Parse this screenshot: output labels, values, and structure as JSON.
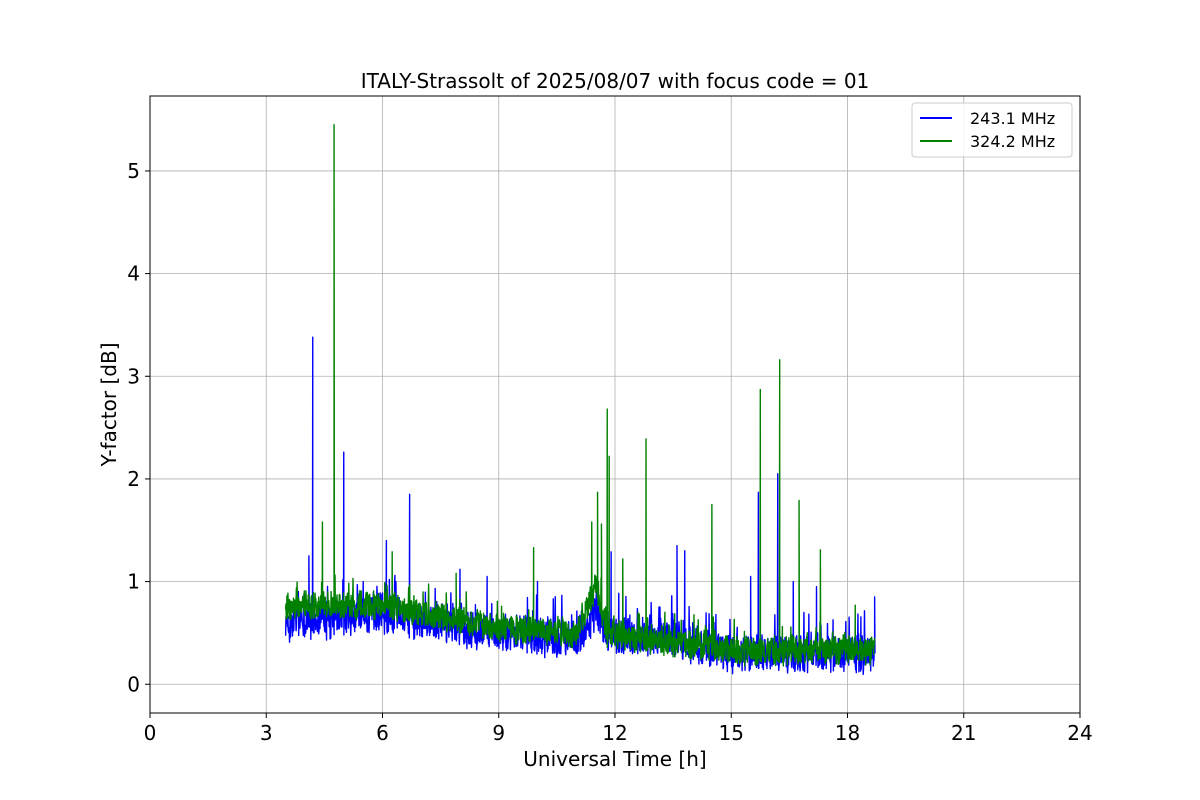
{
  "chart_data": {
    "type": "line",
    "title": "ITALY-Strassolt of 2025/08/07 with focus code = 01",
    "xlabel": "Universal Time [h]",
    "ylabel": "Y-factor [dB]",
    "xlim": [
      0,
      24
    ],
    "ylim": [
      -0.28,
      5.73
    ],
    "xticks": [
      0,
      3,
      6,
      9,
      12,
      15,
      18,
      21,
      24
    ],
    "yticks": [
      0,
      1,
      2,
      3,
      4,
      5
    ],
    "xtick_labels": [
      "0",
      "3",
      "6",
      "9",
      "12",
      "15",
      "18",
      "21",
      "24"
    ],
    "ytick_labels": [
      "0",
      "1",
      "2",
      "3",
      "4",
      "5"
    ],
    "grid": true,
    "legend_position": "top-right",
    "series": [
      {
        "name": "243.1 MHz",
        "color": "#0000ff",
        "baseline": [
          [
            3.5,
            0.6
          ],
          [
            6.0,
            0.7
          ],
          [
            7.5,
            0.6
          ],
          [
            9.0,
            0.5
          ],
          [
            11.0,
            0.45
          ],
          [
            11.5,
            0.7
          ],
          [
            11.8,
            0.5
          ],
          [
            13.5,
            0.45
          ],
          [
            15.0,
            0.3
          ],
          [
            18.7,
            0.3
          ]
        ],
        "band_halfwidth": 0.22,
        "x_start": 3.5,
        "x_end": 18.7,
        "spikes": [
          [
            4.2,
            3.38
          ],
          [
            4.1,
            1.25
          ],
          [
            5.0,
            2.26
          ],
          [
            6.1,
            1.4
          ],
          [
            6.7,
            1.85
          ],
          [
            8.0,
            1.12
          ],
          [
            8.7,
            1.05
          ],
          [
            10.0,
            1.0
          ],
          [
            11.9,
            1.29
          ],
          [
            13.6,
            1.35
          ],
          [
            13.8,
            1.3
          ],
          [
            15.5,
            1.05
          ],
          [
            15.7,
            1.87
          ],
          [
            16.2,
            2.05
          ],
          [
            16.6,
            1.0
          ],
          [
            17.2,
            0.95
          ],
          [
            18.7,
            0.85
          ]
        ]
      },
      {
        "name": "324.2 MHz",
        "color": "#008000",
        "baseline": [
          [
            3.5,
            0.75
          ],
          [
            6.0,
            0.78
          ],
          [
            7.5,
            0.65
          ],
          [
            9.0,
            0.55
          ],
          [
            11.0,
            0.5
          ],
          [
            11.5,
            0.95
          ],
          [
            11.8,
            0.5
          ],
          [
            13.5,
            0.4
          ],
          [
            15.0,
            0.33
          ],
          [
            18.7,
            0.33
          ]
        ],
        "band_halfwidth": 0.16,
        "x_start": 3.5,
        "x_end": 18.7,
        "spikes": [
          [
            4.75,
            5.45
          ],
          [
            4.45,
            1.58
          ],
          [
            6.25,
            1.29
          ],
          [
            7.9,
            1.08
          ],
          [
            9.9,
            1.33
          ],
          [
            11.4,
            1.58
          ],
          [
            11.55,
            1.87
          ],
          [
            11.65,
            1.56
          ],
          [
            11.8,
            2.68
          ],
          [
            11.85,
            2.22
          ],
          [
            12.2,
            1.22
          ],
          [
            12.8,
            2.39
          ],
          [
            14.5,
            1.75
          ],
          [
            15.75,
            2.87
          ],
          [
            16.25,
            3.16
          ],
          [
            16.75,
            1.79
          ],
          [
            17.3,
            1.31
          ],
          [
            18.2,
            0.77
          ]
        ]
      }
    ]
  }
}
